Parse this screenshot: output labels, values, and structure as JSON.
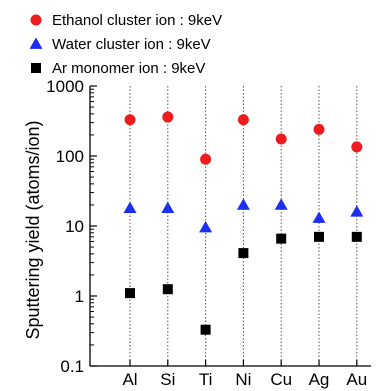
{
  "chart_data": {
    "type": "scatter",
    "title": "",
    "xlabel": "",
    "ylabel": "Sputtering yield (atoms/ion)",
    "y_scale": "log",
    "ylim": [
      0.1,
      1000
    ],
    "y_ticks": [
      "0.1",
      "1",
      "10",
      "100",
      "1000"
    ],
    "categories": [
      "Al",
      "Si",
      "Ti",
      "Ni",
      "Cu",
      "Ag",
      "Au"
    ],
    "grid": "vertical dotted lines at each category",
    "legend_position": "top",
    "series": [
      {
        "name": "Ethanol cluster ion : 9keV",
        "marker": "circle",
        "color": "#ee1c1c",
        "values": [
          330,
          360,
          90,
          330,
          175,
          240,
          135
        ]
      },
      {
        "name": "Water cluster ion : 9keV",
        "marker": "triangle",
        "color": "#1c2ef0",
        "values": [
          18,
          18,
          9.5,
          20,
          20,
          13,
          16
        ]
      },
      {
        "name": "Ar monomer ion : 9keV",
        "marker": "square",
        "color": "#000000",
        "values": [
          1.1,
          1.25,
          0.33,
          4.1,
          6.6,
          7.0,
          7.0
        ]
      }
    ]
  }
}
